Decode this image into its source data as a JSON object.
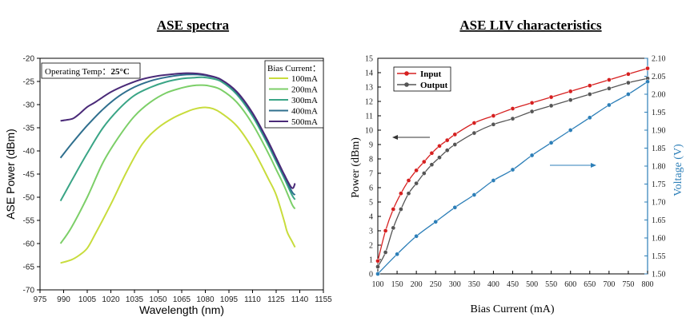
{
  "chart_data": [
    {
      "type": "line",
      "title": "ASE spectra",
      "xlabel": "Wavelength (nm)",
      "ylabel": "ASE Power (dBm)",
      "xlim": [
        975,
        1155
      ],
      "ylim": [
        -70,
        -20
      ],
      "xticks": [
        "975",
        "990",
        "1005",
        "1020",
        "1035",
        "1050",
        "1065",
        "1080",
        "1095",
        "1110",
        "1125",
        "1140",
        "1155"
      ],
      "yticks": [
        "-20",
        "-25",
        "-30",
        "-35",
        "-40",
        "-45",
        "-50",
        "-55",
        "-60",
        "-65",
        "-70"
      ],
      "annotation": {
        "prefix": "Operating Temp：",
        "value": "25°C"
      },
      "legend_title": "Bias Current：",
      "legend_position": "top-right",
      "series": [
        {
          "name": "100mA",
          "color": "#c8dc3c",
          "x": [
            988,
            995,
            1000,
            1005,
            1010,
            1020,
            1030,
            1040,
            1050,
            1060,
            1070,
            1075,
            1080,
            1085,
            1090,
            1100,
            1110,
            1120,
            1125,
            1130,
            1132,
            1135,
            1137
          ],
          "y": [
            -64.2,
            -63.5,
            -62.5,
            -61.0,
            -58.0,
            -51.5,
            -44.5,
            -38.5,
            -35.0,
            -32.8,
            -31.3,
            -30.8,
            -30.6,
            -30.9,
            -31.8,
            -34.6,
            -39.5,
            -46.0,
            -49.5,
            -55.0,
            -57.5,
            -59.5,
            -60.8
          ]
        },
        {
          "name": "200mA",
          "color": "#7ccf68",
          "x": [
            988,
            995,
            1005,
            1015,
            1025,
            1035,
            1045,
            1055,
            1065,
            1072,
            1078,
            1083,
            1090,
            1100,
            1110,
            1120,
            1125,
            1130,
            1135,
            1137
          ],
          "y": [
            -60.0,
            -56.5,
            -50.0,
            -42.5,
            -37.0,
            -32.5,
            -29.5,
            -27.5,
            -26.4,
            -25.9,
            -25.8,
            -26.0,
            -26.8,
            -29.5,
            -34.2,
            -40.5,
            -44.0,
            -47.5,
            -51.5,
            -52.5
          ]
        },
        {
          "name": "300mA",
          "color": "#3aa586",
          "x": [
            988,
            995,
            1005,
            1015,
            1025,
            1035,
            1045,
            1055,
            1065,
            1072,
            1078,
            1083,
            1090,
            1100,
            1110,
            1120,
            1125,
            1130,
            1135,
            1137
          ],
          "y": [
            -50.8,
            -46.5,
            -40.5,
            -35.0,
            -31.0,
            -28.0,
            -26.3,
            -25.1,
            -24.4,
            -24.2,
            -24.1,
            -24.3,
            -25.0,
            -27.8,
            -32.5,
            -38.8,
            -42.3,
            -45.8,
            -49.5,
            -50.5
          ]
        },
        {
          "name": "400mA",
          "color": "#2f6f8e",
          "x": [
            988,
            995,
            1005,
            1015,
            1025,
            1035,
            1045,
            1055,
            1065,
            1072,
            1078,
            1083,
            1090,
            1100,
            1110,
            1120,
            1125,
            1130,
            1135,
            1137
          ],
          "y": [
            -41.5,
            -38.5,
            -34.5,
            -31.0,
            -28.2,
            -26.2,
            -24.9,
            -24.1,
            -23.6,
            -23.5,
            -23.6,
            -23.9,
            -24.6,
            -27.4,
            -32.0,
            -38.3,
            -41.8,
            -45.3,
            -48.8,
            -49.5
          ]
        },
        {
          "name": "500mA",
          "color": "#4a2a78",
          "x": [
            988,
            992,
            996,
            1000,
            1005,
            1010,
            1020,
            1030,
            1040,
            1050,
            1060,
            1068,
            1075,
            1082,
            1090,
            1100,
            1110,
            1120,
            1125,
            1130,
            1135,
            1137
          ],
          "y": [
            -33.5,
            -33.3,
            -33.0,
            -32.0,
            -30.5,
            -29.5,
            -27.3,
            -25.7,
            -24.5,
            -23.8,
            -23.4,
            -23.2,
            -23.3,
            -23.7,
            -24.6,
            -27.2,
            -31.8,
            -38.0,
            -41.5,
            -45.0,
            -48.0,
            -47.0
          ]
        }
      ]
    },
    {
      "type": "line",
      "title": "ASE LIV characteristics",
      "xlabel": "Bias Current (mA)",
      "ylabel": "Power (dBm)",
      "ylabel_right": "Voltage (V)",
      "xlim": [
        100,
        800
      ],
      "ylim": [
        0,
        15
      ],
      "ylim_right": [
        1.5,
        2.1
      ],
      "xticks": [
        "100",
        "150",
        "200",
        "250",
        "300",
        "350",
        "400",
        "450",
        "500",
        "550",
        "600",
        "650",
        "700",
        "750",
        "800"
      ],
      "yticks": [
        "0",
        "1",
        "2",
        "3",
        "4",
        "5",
        "6",
        "7",
        "8",
        "9",
        "10",
        "11",
        "12",
        "13",
        "14",
        "15"
      ],
      "yticks_right": [
        "1.50",
        "1.55",
        "1.60",
        "1.65",
        "1.70",
        "1.75",
        "1.80",
        "1.85",
        "1.90",
        "1.95",
        "2.00",
        "2.05",
        "2.10"
      ],
      "legend_position": "top-left",
      "series": [
        {
          "name": "Input",
          "color": "#d62020",
          "axis": "left",
          "x": [
            100,
            120,
            140,
            160,
            180,
            200,
            220,
            240,
            260,
            280,
            300,
            350,
            400,
            450,
            500,
            550,
            600,
            650,
            700,
            750,
            800
          ],
          "y": [
            0.9,
            3.0,
            4.5,
            5.6,
            6.5,
            7.2,
            7.8,
            8.4,
            8.9,
            9.3,
            9.7,
            10.5,
            11.0,
            11.5,
            11.9,
            12.3,
            12.7,
            13.1,
            13.5,
            13.9,
            14.3
          ]
        },
        {
          "name": "Output",
          "color": "#555555",
          "axis": "left",
          "x": [
            100,
            120,
            140,
            160,
            180,
            200,
            220,
            240,
            260,
            280,
            300,
            350,
            400,
            450,
            500,
            550,
            600,
            650,
            700,
            750,
            800
          ],
          "y": [
            0.5,
            1.5,
            3.2,
            4.5,
            5.6,
            6.3,
            7.0,
            7.6,
            8.1,
            8.6,
            9.0,
            9.8,
            10.4,
            10.8,
            11.3,
            11.7,
            12.1,
            12.5,
            12.9,
            13.3,
            13.6
          ]
        },
        {
          "name": "Voltage",
          "color": "#2d7fb8",
          "axis": "right",
          "x": [
            100,
            150,
            200,
            250,
            300,
            350,
            400,
            450,
            500,
            550,
            600,
            650,
            700,
            750,
            800
          ],
          "y": [
            1.5,
            1.555,
            1.605,
            1.645,
            1.685,
            1.72,
            1.76,
            1.79,
            1.83,
            1.865,
            1.9,
            1.935,
            1.97,
            2.0,
            2.035
          ]
        }
      ]
    }
  ]
}
